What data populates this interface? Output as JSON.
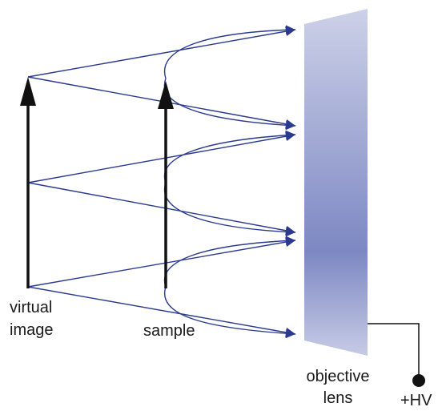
{
  "labels": {
    "virtual_image_line1": "virtual",
    "virtual_image_line2": "image",
    "sample": "sample",
    "objective_lens_line1": "objective",
    "objective_lens_line2": "lens",
    "high_voltage": "+HV"
  },
  "colors": {
    "ray": "#2b3a8f",
    "arrow": "#111111",
    "lens_light": "#c9cde6",
    "lens_dark": "#7c87c2",
    "wire": "#111111"
  }
}
